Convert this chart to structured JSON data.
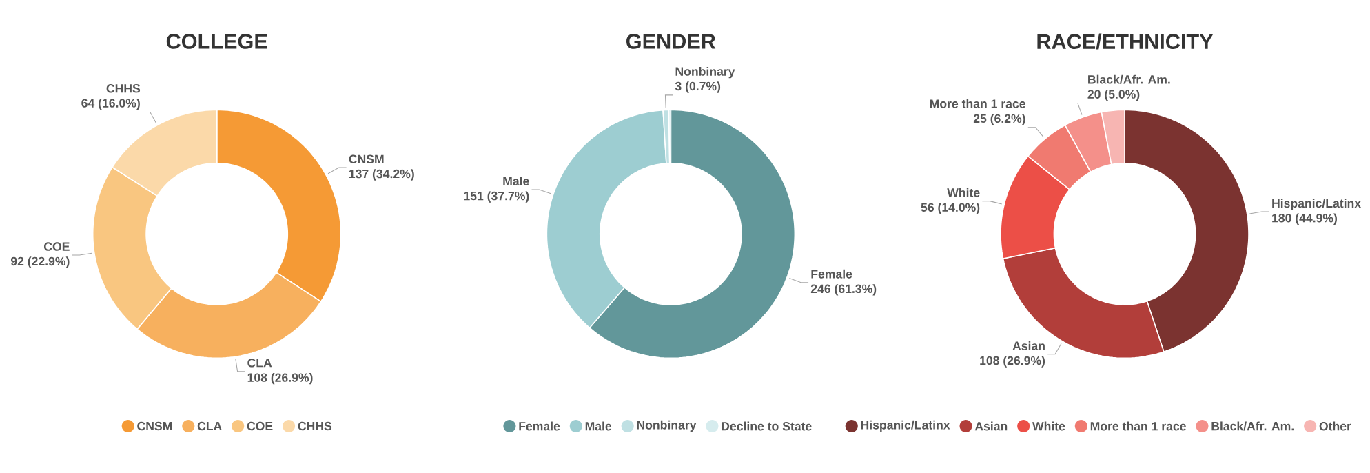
{
  "chart_data": [
    {
      "type": "donut",
      "title": "COLLEGE",
      "categories": [
        "CNSM",
        "CLA",
        "COE",
        "CHHS"
      ],
      "values": [
        137,
        108,
        92,
        64
      ],
      "colors": [
        "#f59a35",
        "#f7b05e",
        "#f9c680",
        "#fbd9a9"
      ],
      "value_labels": [
        "137 (34.2%)",
        "108 (26.9%)",
        "92 (22.9%)",
        "64 (16.0%)"
      ],
      "legend": "bottom"
    },
    {
      "type": "donut",
      "title": "GENDER",
      "categories": [
        "Female",
        "Male",
        "Nonbinary",
        "Decline to State"
      ],
      "values": [
        246,
        151,
        3,
        1
      ],
      "colors": [
        "#62979a",
        "#9dcdd1",
        "#bfe0e3",
        "#d6ecee"
      ],
      "value_labels": [
        "246 (61.3%)",
        "151 (37.7%)",
        "3 (0.7%)",
        null
      ],
      "legend": "bottom"
    },
    {
      "type": "donut",
      "title": "RACE/ETHNICITY",
      "categories": [
        "Hispanic/Latinx",
        "Asian",
        "White",
        "More than 1 race",
        "Black/Afr. Am.",
        "Other"
      ],
      "values": [
        180,
        108,
        56,
        25,
        20,
        12
      ],
      "colors": [
        "#7b3330",
        "#b23e3a",
        "#ec4f47",
        "#f07a70",
        "#f4908a",
        "#f7b5b2"
      ],
      "value_labels": [
        "180 (44.9%)",
        "108 (26.9%)",
        "56 (14.0%)",
        "25 (6.2%)",
        "20 (5.0%)",
        null
      ],
      "legend": "bottom"
    }
  ]
}
